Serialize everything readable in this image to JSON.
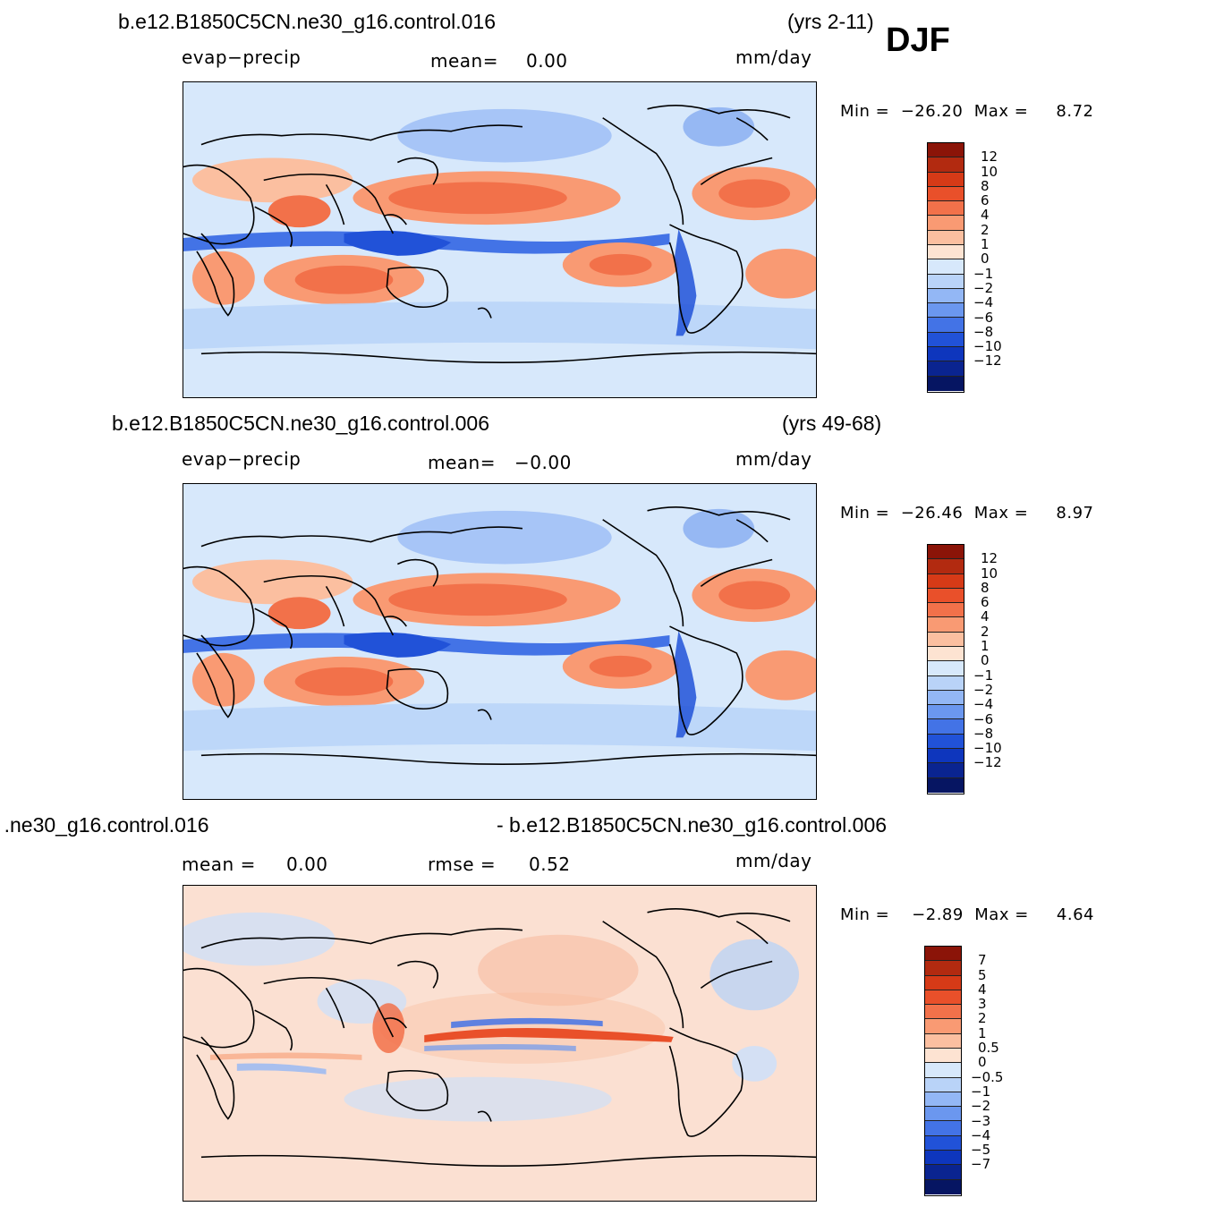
{
  "season": "DJF",
  "colors": {
    "land": "#d7e8f8",
    "coast": "#000000",
    "pos": [
      "#fde3d2",
      "#fbbfa0",
      "#f99a73",
      "#f2714a",
      "#e9502a",
      "#d63a17",
      "#b22a10",
      "#8b1408"
    ],
    "neg": [
      "#d7e8fb",
      "#b9d3f8",
      "#93b7f5",
      "#6b97ef",
      "#4373e6",
      "#2152d8",
      "#0e36bd",
      "#0a2490",
      "#061562"
    ]
  },
  "panels": [
    {
      "title": "b.e12.B1850C5CN.ne30_g16.control.016",
      "years": "(yrs 2-11)",
      "variable": "evap−precip",
      "mean_label": "mean=",
      "mean_value": "0.00",
      "units": "mm/day",
      "min_label": "Min",
      "min_value": "−26.20",
      "max_label": "Max",
      "max_value": "8.72",
      "contour_levels": [
        "12",
        "10",
        "8",
        "6",
        "4",
        "2",
        "1",
        "0",
        "−1",
        "−2",
        "−4",
        "−6",
        "−8",
        "−10",
        "−12"
      ]
    },
    {
      "title": "b.e12.B1850C5CN.ne30_g16.control.006",
      "years": "(yrs 49-68)",
      "variable": "evap−precip",
      "mean_label": "mean=",
      "mean_value": "−0.00",
      "units": "mm/day",
      "min_label": "Min",
      "min_value": "−26.46",
      "max_label": "Max",
      "max_value": "8.97",
      "contour_levels": [
        "12",
        "10",
        "8",
        "6",
        "4",
        "2",
        "1",
        "0",
        "−1",
        "−2",
        "−4",
        "−6",
        "−8",
        "−10",
        "−12"
      ]
    },
    {
      "title_left": " .ne30_g16.control.016",
      "title_right": "- b.e12.B1850C5CN.ne30_g16.control.006",
      "mean_label": "mean =",
      "mean_value": "0.00",
      "rmse_label": "rmse =",
      "rmse_value": "0.52",
      "units": "mm/day",
      "min_label": "Min",
      "min_value": "−2.89",
      "max_label": "Max",
      "max_value": "4.64",
      "contour_levels": [
        "7",
        "5",
        "4",
        "3",
        "2",
        "1",
        "0.5",
        "0",
        "−0.5",
        "−1",
        "−2",
        "−3",
        "−4",
        "−5",
        "−7"
      ]
    }
  ]
}
